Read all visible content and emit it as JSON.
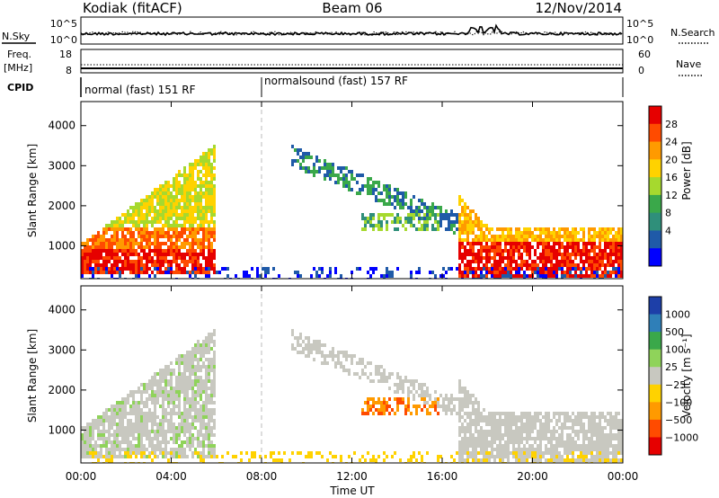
{
  "header": {
    "station": "Kodiak (fitACF)",
    "beam": "Beam 06",
    "date": "12/Nov/2014"
  },
  "strips": {
    "nsky_label": "N.Sky",
    "nsearch_label": "N.Search",
    "nsky_ticks": [
      "10^5",
      "10^0"
    ],
    "nsearch_ticks": [
      "10^5",
      "10^0"
    ],
    "freq_label_1": "Freq.",
    "freq_label_2": "[MHz]",
    "freq_ticks": [
      "18",
      "8"
    ],
    "nave_label": "Nave",
    "nave_ticks": [
      "60",
      "0"
    ],
    "cpid_label": "CPID",
    "cpid_segments": [
      {
        "label": "normal (fast) 151 RF",
        "start_hour": 0,
        "end_hour": 8
      },
      {
        "label": "normalsound (fast) 157 RF",
        "start_hour": 8,
        "end_hour": 24
      }
    ]
  },
  "chart_data": [
    {
      "type": "heatmap",
      "panel": "power",
      "xlabel": "",
      "ylabel": "Slant Range [km]",
      "xlim": [
        0,
        24
      ],
      "ylim": [
        180,
        4600
      ],
      "yticks": [
        1000,
        2000,
        3000,
        4000
      ],
      "colorbar": {
        "label": "Power [dB]",
        "ticks": [
          "28",
          "24",
          "20",
          "16",
          "12",
          "8",
          "4"
        ],
        "colors": [
          "#e60000",
          "#ff4b00",
          "#ff9a00",
          "#ffd200",
          "#a6d92e",
          "#3aa84a",
          "#2f8f7a",
          "#1f5aa8",
          "#0000ff"
        ]
      },
      "regions": [
        {
          "x": [
            0,
            4.5
          ],
          "y": [
            300,
            1800
          ],
          "value": 24
        },
        {
          "x": [
            4.5,
            6.0
          ],
          "y": [
            500,
            3500
          ],
          "value": 12
        },
        {
          "x": [
            9.2,
            16.5
          ],
          "y": [
            1300,
            3500
          ],
          "value": 10
        },
        {
          "x": [
            16.5,
            24
          ],
          "y": [
            300,
            1500
          ],
          "value": 24
        }
      ]
    },
    {
      "type": "heatmap",
      "panel": "velocity",
      "xlabel": "Time UT",
      "ylabel": "Slant Range [km]",
      "xlim": [
        0,
        24
      ],
      "ylim": [
        180,
        4600
      ],
      "yticks": [
        1000,
        2000,
        3000,
        4000
      ],
      "xticks": [
        "00:00",
        "04:00",
        "08:00",
        "12:00",
        "16:00",
        "20:00",
        "00:00"
      ],
      "colorbar": {
        "label": "Velocity [m s⁻¹]",
        "ticks": [
          "1000",
          "500",
          "100",
          "25",
          "−25",
          "−100",
          "−500",
          "−1000"
        ],
        "colors": [
          "#1d3fa8",
          "#2f7fb8",
          "#3aa84a",
          "#8fd35a",
          "#c8c8c0",
          "#ffd200",
          "#ff9a00",
          "#ff4b00",
          "#e60000"
        ]
      },
      "regions": [
        {
          "x": [
            0,
            6.0
          ],
          "y": [
            300,
            2600
          ],
          "value": 0
        },
        {
          "x": [
            9.2,
            16.5
          ],
          "y": [
            2400,
            3500
          ],
          "value": 0
        },
        {
          "x": [
            13.0,
            15.8
          ],
          "y": [
            1400,
            1900
          ],
          "value": -300
        },
        {
          "x": [
            16.5,
            24
          ],
          "y": [
            400,
            1500
          ],
          "value": 0
        }
      ]
    }
  ]
}
